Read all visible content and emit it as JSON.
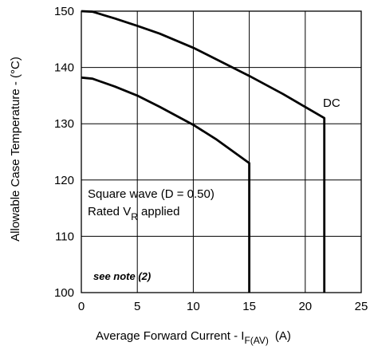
{
  "chart_data": {
    "type": "line",
    "xlabel": "Average Forward Current - I",
    "xlabel_subscript": "F(AV)",
    "xlabel_unit": "(A)",
    "ylabel": "Allowable Case Temperature - (°C)",
    "xlim": [
      0,
      25
    ],
    "ylim": [
      100,
      150
    ],
    "x_ticks": [
      "0",
      "5",
      "10",
      "15",
      "20",
      "25"
    ],
    "y_ticks": [
      "100",
      "110",
      "120",
      "130",
      "140",
      "150"
    ],
    "grid": true,
    "series": [
      {
        "name": "DC",
        "x": [
          0,
          1,
          3,
          5,
          7,
          10,
          12,
          15,
          18,
          21.7,
          21.7
        ],
        "y": [
          150,
          149.9,
          148.7,
          147.4,
          146,
          143.5,
          141.5,
          138.5,
          135.3,
          131,
          100
        ]
      },
      {
        "name": "Square wave (D = 0.50)",
        "x": [
          0,
          1,
          3,
          5,
          7,
          10,
          12,
          15,
          15
        ],
        "y": [
          138.2,
          138,
          136.6,
          135,
          133,
          129.8,
          127.3,
          123,
          100
        ]
      }
    ],
    "annotations": {
      "dc_label": "DC",
      "square_wave_line1": "Square wave (D = 0.50)",
      "rated_prefix": "Rated V",
      "rated_subscript": "R",
      "rated_suffix": " applied",
      "note": "see note (2)"
    }
  }
}
